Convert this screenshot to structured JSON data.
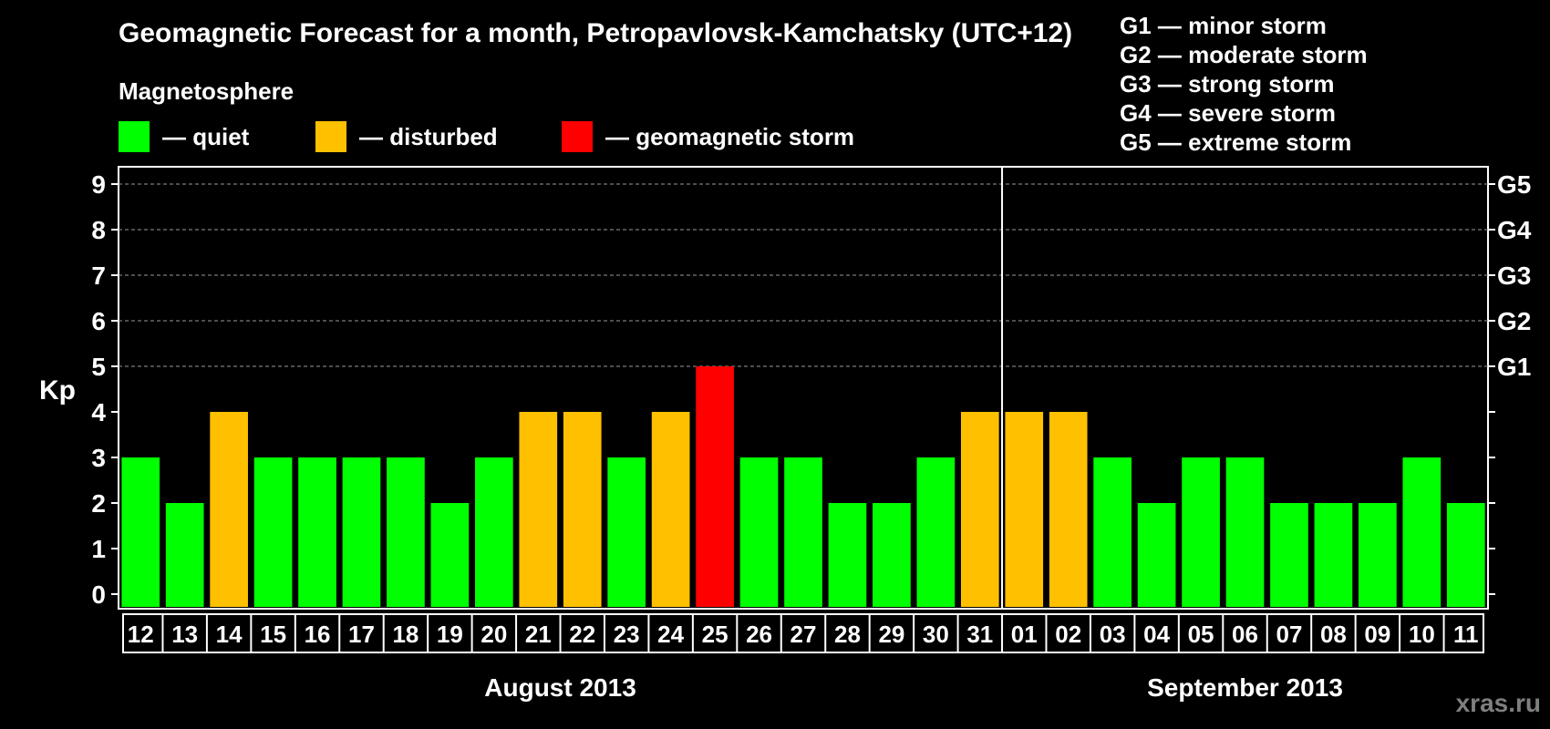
{
  "title": "Geomagnetic Forecast for a month, Petropavlovsk-Kamchatsky (UTC+12)",
  "subtitle": "Magnetosphere",
  "legend": [
    {
      "label": "— quiet",
      "color": "#00ff00"
    },
    {
      "label": "— disturbed",
      "color": "#ffc000"
    },
    {
      "label": "— geomagnetic storm",
      "color": "#ff0000"
    }
  ],
  "storm_levels": [
    {
      "label": "G1 — minor storm"
    },
    {
      "label": "G2 — moderate storm"
    },
    {
      "label": "G3 — strong storm"
    },
    {
      "label": "G4 — severe storm"
    },
    {
      "label": "G5 — extreme storm"
    }
  ],
  "watermark": "xras.ru",
  "chart_data": {
    "type": "bar",
    "ylabel": "Kp",
    "ylim": [
      0,
      9
    ],
    "yticks": [
      0,
      1,
      2,
      3,
      4,
      5,
      6,
      7,
      8,
      9
    ],
    "right_axis_labels": [
      {
        "kp": 5,
        "label": "G1"
      },
      {
        "kp": 6,
        "label": "G2"
      },
      {
        "kp": 7,
        "label": "G3"
      },
      {
        "kp": 8,
        "label": "G4"
      },
      {
        "kp": 9,
        "label": "G5"
      }
    ],
    "grid": "dashed horizontal lines at Kp 5–9",
    "categories": [
      "12",
      "13",
      "14",
      "15",
      "16",
      "17",
      "18",
      "19",
      "20",
      "21",
      "22",
      "23",
      "24",
      "25",
      "26",
      "27",
      "28",
      "29",
      "30",
      "31",
      "01",
      "02",
      "03",
      "04",
      "05",
      "06",
      "07",
      "08",
      "09",
      "10",
      "11"
    ],
    "values": [
      3,
      2,
      4,
      3,
      3,
      3,
      3,
      2,
      3,
      4,
      4,
      3,
      4,
      5,
      3,
      3,
      2,
      2,
      3,
      4,
      4,
      4,
      3,
      2,
      3,
      3,
      2,
      2,
      2,
      3,
      2
    ],
    "colors": {
      "quiet": "#00ff00",
      "disturbed": "#ffc000",
      "storm": "#ff0000"
    },
    "month_groups": [
      {
        "label": "August 2013",
        "start": 0,
        "end": 19
      },
      {
        "label": "September 2013",
        "start": 20,
        "end": 30
      }
    ]
  }
}
